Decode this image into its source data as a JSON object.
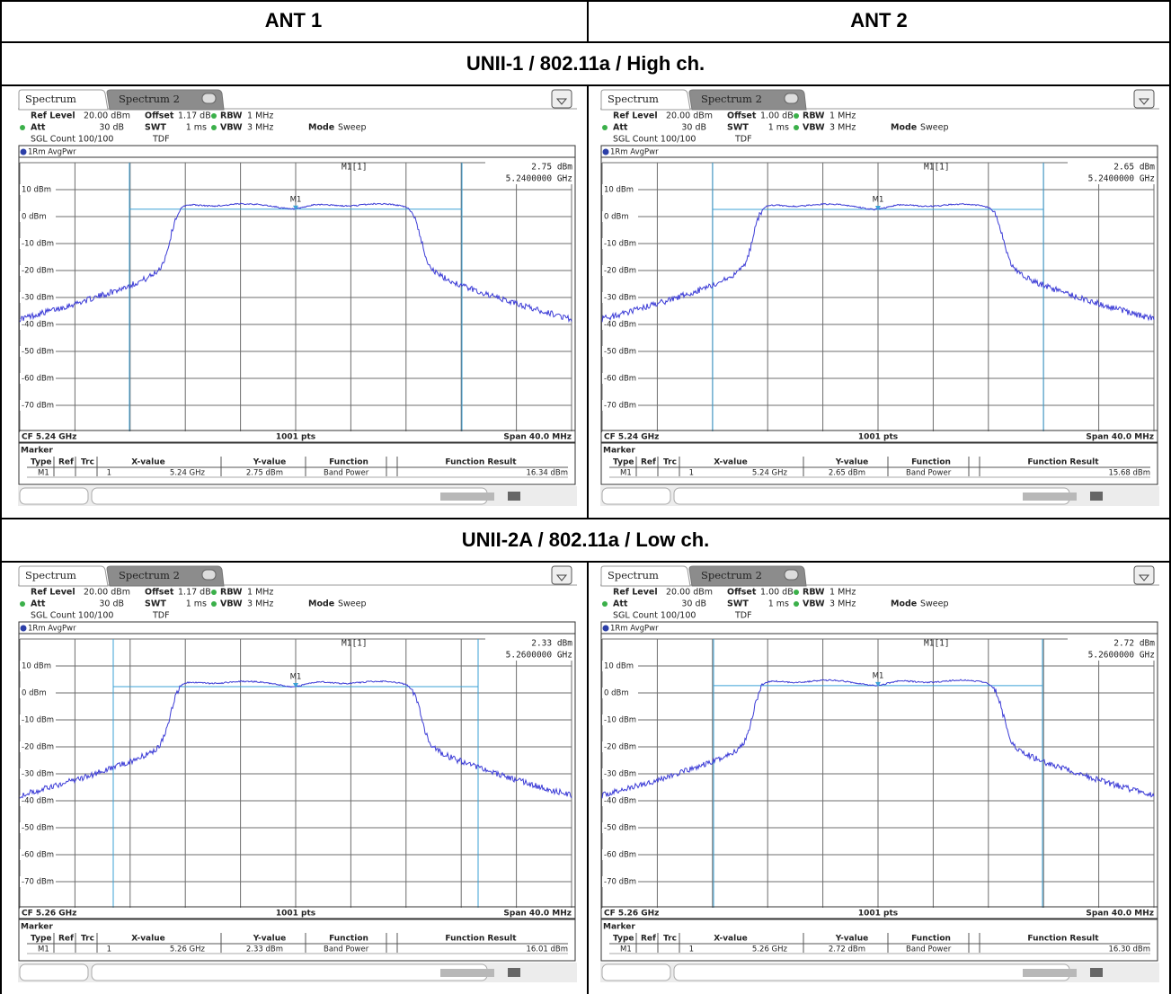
{
  "header": {
    "columns": [
      "ANT 1",
      "ANT 2"
    ]
  },
  "sections": [
    {
      "title": "UNII-1 / 802.11a / High ch.",
      "panels": [
        {
          "tab_active": "Spectrum",
          "tab_inactive": "Spectrum 2",
          "ref_level_label": "Ref Level",
          "ref_level": "20.00 dBm",
          "offset_label": "Offset",
          "offset": "1.17 dB",
          "rbw_label": "RBW",
          "rbw": "1 MHz",
          "att_label": "Att",
          "att": "30 dB",
          "swt_label": "SWT",
          "swt": "1 ms",
          "vbw_label": "VBW",
          "vbw": "3 MHz",
          "mode_label": "Mode",
          "mode": "Sweep",
          "sgl_count": "SGL Count 100/100",
          "tdf": "TDF",
          "trace_label": "1Rm AvgPwr",
          "readout": {
            "name": "M1[1]",
            "level": "2.75 dBm",
            "freq": "5.2400000 GHz"
          },
          "marker_tag": "M1",
          "y_axis_labels": [
            "10 dBm",
            "0 dBm",
            "-10 dBm",
            "-20 dBm",
            "-30 dBm",
            "-40 dBm",
            "-50 dBm",
            "-60 dBm",
            "-70 dBm"
          ],
          "cf": "CF 5.24 GHz",
          "points": "1001 pts",
          "span": "Span 40.0 MHz",
          "marker_table": {
            "title": "Marker",
            "columns": [
              "Type",
              "Ref",
              "Trc",
              "X-value",
              "Y-value",
              "Function",
              "Function Result"
            ],
            "row": {
              "type": "M1",
              "trc": "1",
              "x_value": "5.24 GHz",
              "y_value": "2.75 dBm",
              "function": "Band Power",
              "result": "16.34 dBm"
            }
          }
        },
        {
          "tab_active": "Spectrum",
          "tab_inactive": "Spectrum 2",
          "ref_level_label": "Ref Level",
          "ref_level": "20.00 dBm",
          "offset_label": "Offset",
          "offset": "1.00 dB",
          "rbw_label": "RBW",
          "rbw": "1 MHz",
          "att_label": "Att",
          "att": "30 dB",
          "swt_label": "SWT",
          "swt": "1 ms",
          "vbw_label": "VBW",
          "vbw": "3 MHz",
          "mode_label": "Mode",
          "mode": "Sweep",
          "sgl_count": "SGL Count 100/100",
          "tdf": "TDF",
          "trace_label": "1Rm AvgPwr",
          "readout": {
            "name": "M1[1]",
            "level": "2.65 dBm",
            "freq": "5.2400000 GHz"
          },
          "marker_tag": "M1",
          "y_axis_labels": [
            "10 dBm",
            "0 dBm",
            "-10 dBm",
            "-20 dBm",
            "-30 dBm",
            "-40 dBm",
            "-50 dBm",
            "-60 dBm",
            "-70 dBm"
          ],
          "cf": "CF 5.24 GHz",
          "points": "1001 pts",
          "span": "Span 40.0 MHz",
          "marker_table": {
            "title": "Marker",
            "columns": [
              "Type",
              "Ref",
              "Trc",
              "X-value",
              "Y-value",
              "Function",
              "Function Result"
            ],
            "row": {
              "type": "M1",
              "trc": "1",
              "x_value": "5.24 GHz",
              "y_value": "2.65 dBm",
              "function": "Band Power",
              "result": "15.68 dBm"
            }
          }
        }
      ]
    },
    {
      "title": "UNII-2A / 802.11a / Low ch.",
      "panels": [
        {
          "tab_active": "Spectrum",
          "tab_inactive": "Spectrum 2",
          "ref_level_label": "Ref Level",
          "ref_level": "20.00 dBm",
          "offset_label": "Offset",
          "offset": "1.17 dB",
          "rbw_label": "RBW",
          "rbw": "1 MHz",
          "att_label": "Att",
          "att": "30 dB",
          "swt_label": "SWT",
          "swt": "1 ms",
          "vbw_label": "VBW",
          "vbw": "3 MHz",
          "mode_label": "Mode",
          "mode": "Sweep",
          "sgl_count": "SGL Count 100/100",
          "tdf": "TDF",
          "trace_label": "1Rm AvgPwr",
          "readout": {
            "name": "M1[1]",
            "level": "2.33 dBm",
            "freq": "5.2600000 GHz"
          },
          "marker_tag": "M1",
          "y_axis_labels": [
            "10 dBm",
            "0 dBm",
            "-10 dBm",
            "-20 dBm",
            "-30 dBm",
            "-40 dBm",
            "-50 dBm",
            "-60 dBm",
            "-70 dBm"
          ],
          "cf": "CF 5.26 GHz",
          "points": "1001 pts",
          "span": "Span 40.0 MHz",
          "marker_table": {
            "title": "Marker",
            "columns": [
              "Type",
              "Ref",
              "Trc",
              "X-value",
              "Y-value",
              "Function",
              "Function Result"
            ],
            "row": {
              "type": "M1",
              "trc": "1",
              "x_value": "5.26 GHz",
              "y_value": "2.33 dBm",
              "function": "Band Power",
              "result": "16.01 dBm"
            }
          }
        },
        {
          "tab_active": "Spectrum",
          "tab_inactive": "Spectrum 2",
          "ref_level_label": "Ref Level",
          "ref_level": "20.00 dBm",
          "offset_label": "Offset",
          "offset": "1.00 dB",
          "rbw_label": "RBW",
          "rbw": "1 MHz",
          "att_label": "Att",
          "att": "30 dB",
          "swt_label": "SWT",
          "swt": "1 ms",
          "vbw_label": "VBW",
          "vbw": "3 MHz",
          "mode_label": "Mode",
          "mode": "Sweep",
          "sgl_count": "SGL Count 100/100",
          "tdf": "TDF",
          "trace_label": "1Rm AvgPwr",
          "readout": {
            "name": "M1[1]",
            "level": "2.72 dBm",
            "freq": "5.2600000 GHz"
          },
          "marker_tag": "M1",
          "y_axis_labels": [
            "10 dBm",
            "0 dBm",
            "-10 dBm",
            "-20 dBm",
            "-30 dBm",
            "-40 dBm",
            "-50 dBm",
            "-60 dBm",
            "-70 dBm"
          ],
          "cf": "CF 5.26 GHz",
          "points": "1001 pts",
          "span": "Span 40.0 MHz",
          "marker_table": {
            "title": "Marker",
            "columns": [
              "Type",
              "Ref",
              "Trc",
              "X-value",
              "Y-value",
              "Function",
              "Function Result"
            ],
            "row": {
              "type": "M1",
              "trc": "1",
              "x_value": "5.26 GHz",
              "y_value": "2.72 dBm",
              "function": "Band Power",
              "result": "16.30 dBm"
            }
          }
        }
      ]
    }
  ]
}
